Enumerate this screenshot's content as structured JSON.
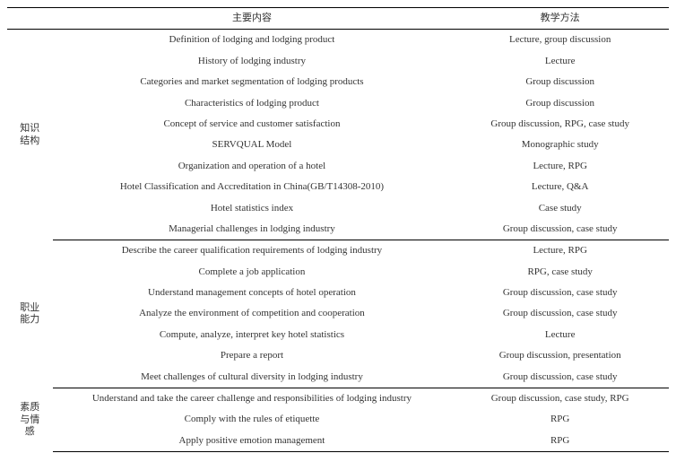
{
  "header": {
    "col_category": "",
    "col_content": "主要内容",
    "col_method": "教学方法"
  },
  "sections": [
    {
      "category": "知识结构",
      "rows": [
        {
          "content": "Definition of lodging and lodging product",
          "method": "Lecture, group discussion"
        },
        {
          "content": "History of lodging industry",
          "method": "Lecture"
        },
        {
          "content": "Categories and market segmentation of lodging products",
          "method": "Group discussion"
        },
        {
          "content": "Characteristics of lodging product",
          "method": "Group discussion"
        },
        {
          "content": "Concept of service and customer satisfaction",
          "method": "Group discussion, RPG, case study"
        },
        {
          "content": "SERVQUAL Model",
          "method": "Monographic study"
        },
        {
          "content": "Organization and operation of a hotel",
          "method": "Lecture, RPG"
        },
        {
          "content": "Hotel Classification and Accreditation in China(GB/T14308-2010)",
          "method": "Lecture, Q&A"
        },
        {
          "content": "Hotel statistics index",
          "method": "Case study"
        },
        {
          "content": "Managerial challenges in lodging industry",
          "method": "Group discussion, case study"
        }
      ]
    },
    {
      "category": "职业能力",
      "rows": [
        {
          "content": "Describe the career qualification requirements of lodging industry",
          "method": "Lecture, RPG"
        },
        {
          "content": "Complete a job application",
          "method": "RPG, case study"
        },
        {
          "content": "Understand management concepts of hotel operation",
          "method": "Group discussion, case study"
        },
        {
          "content": "Analyze the environment of competition and cooperation",
          "method": "Group discussion, case study"
        },
        {
          "content": "Compute, analyze, interpret key hotel statistics",
          "method": "Lecture"
        },
        {
          "content": "Prepare a report",
          "method": "Group discussion, presentation"
        },
        {
          "content": "Meet challenges of cultural diversity in lodging industry",
          "method": "Group discussion, case study"
        }
      ]
    },
    {
      "category": "素质与情感",
      "rows": [
        {
          "content": "Understand and take the career challenge and responsibilities of lodging industry",
          "method": "Group discussion, case study, RPG"
        },
        {
          "content": "Comply with the rules of etiquette",
          "method": "RPG"
        },
        {
          "content": "Apply positive emotion management",
          "method": "RPG"
        }
      ]
    }
  ]
}
